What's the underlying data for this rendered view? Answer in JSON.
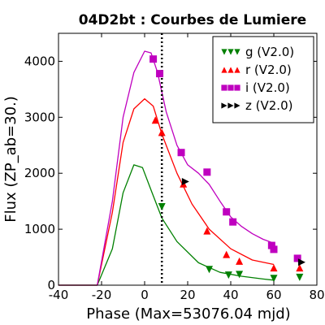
{
  "chart_data": {
    "type": "scatter",
    "title": "04D2bt : Courbes de Lumiere",
    "xlabel": "Phase (Max=53076.04 mjd)",
    "ylabel": "Flux (ZP_ab=30.)",
    "xlim": [
      -40,
      80
    ],
    "ylim": [
      0,
      4500
    ],
    "xticks": [
      "-40",
      "-20",
      "0",
      "20",
      "40",
      "60",
      "80"
    ],
    "yticks": [
      "0",
      "1000",
      "2000",
      "3000",
      "4000"
    ],
    "grid": false,
    "legend_position": "top-right",
    "vline_x": 8,
    "series": [
      {
        "name": "g (V2.0)",
        "color": "#008000",
        "marker": "triangle-down",
        "points": [
          [
            8,
            1400
          ],
          [
            30,
            280
          ],
          [
            39,
            180
          ],
          [
            44,
            190
          ],
          [
            60,
            120
          ],
          [
            72,
            140
          ]
        ],
        "model": [
          [
            -40,
            0
          ],
          [
            -22,
            0
          ],
          [
            -15,
            650
          ],
          [
            -10,
            1650
          ],
          [
            -5,
            2150
          ],
          [
            -1,
            2100
          ],
          [
            3,
            1700
          ],
          [
            8,
            1200
          ],
          [
            15,
            780
          ],
          [
            25,
            400
          ],
          [
            35,
            230
          ],
          [
            45,
            160
          ],
          [
            55,
            110
          ],
          [
            60,
            90
          ]
        ]
      },
      {
        "name": "r (V2.0)",
        "color": "#ff0000",
        "marker": "triangle-up",
        "points": [
          [
            5,
            2950
          ],
          [
            8,
            2730
          ],
          [
            18,
            1810
          ],
          [
            29,
            970
          ],
          [
            38,
            550
          ],
          [
            44,
            430
          ],
          [
            60,
            310
          ],
          [
            72,
            310
          ]
        ],
        "model": [
          [
            -40,
            0
          ],
          [
            -22,
            0
          ],
          [
            -15,
            1300
          ],
          [
            -10,
            2550
          ],
          [
            -5,
            3150
          ],
          [
            0,
            3330
          ],
          [
            4,
            3200
          ],
          [
            8,
            2700
          ],
          [
            15,
            2000
          ],
          [
            22,
            1450
          ],
          [
            30,
            1000
          ],
          [
            40,
            650
          ],
          [
            50,
            450
          ],
          [
            60,
            370
          ]
        ]
      },
      {
        "name": "i (V2.0)",
        "color": "#bf00bf",
        "marker": "square",
        "points": [
          [
            4,
            4040
          ],
          [
            7,
            3780
          ],
          [
            17,
            2370
          ],
          [
            29,
            2020
          ],
          [
            38,
            1310
          ],
          [
            41,
            1130
          ],
          [
            59,
            710
          ],
          [
            60,
            640
          ],
          [
            71,
            480
          ]
        ],
        "model": [
          [
            -40,
            0
          ],
          [
            -22,
            0
          ],
          [
            -15,
            1500
          ],
          [
            -10,
            3000
          ],
          [
            -5,
            3800
          ],
          [
            0,
            4180
          ],
          [
            3,
            4150
          ],
          [
            6,
            3800
          ],
          [
            10,
            3100
          ],
          [
            15,
            2500
          ],
          [
            20,
            2150
          ],
          [
            25,
            2000
          ],
          [
            30,
            1800
          ],
          [
            35,
            1500
          ],
          [
            40,
            1220
          ],
          [
            45,
            1050
          ],
          [
            50,
            920
          ],
          [
            55,
            820
          ],
          [
            60,
            750
          ]
        ]
      },
      {
        "name": "z (V2.0)",
        "color": "#000000",
        "marker": "triangle-right",
        "points": [
          [
            19,
            1850
          ],
          [
            73,
            410
          ]
        ],
        "model": []
      }
    ]
  }
}
